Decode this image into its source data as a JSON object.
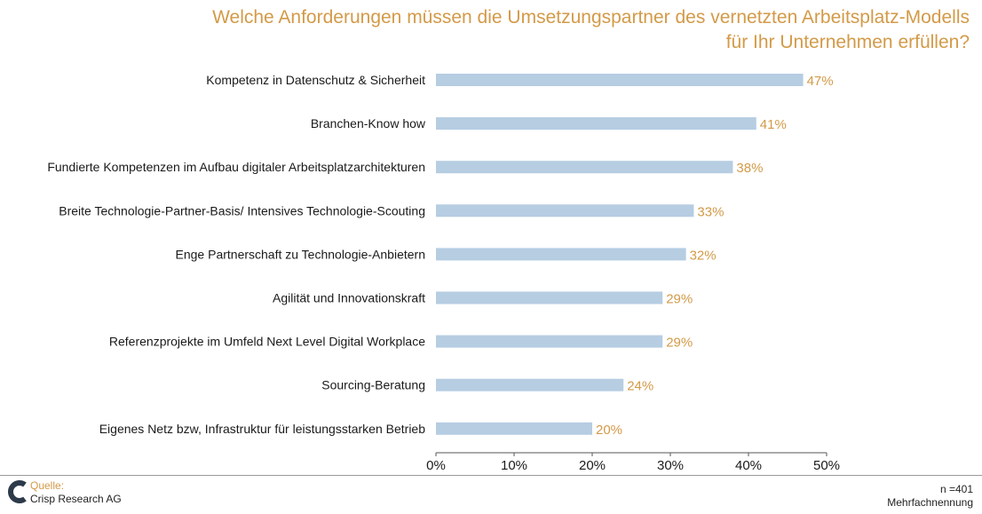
{
  "chart_data": {
    "type": "bar",
    "orientation": "horizontal",
    "title": "Welche Anforderungen müssen die Umsetzungspartner des vernetzten Arbeitsplatz-Modells für Ihr Unternehmen erfüllen?",
    "title_lines": [
      "Welche Anforderungen müssen die Umsetzungspartner des vernetzten Arbeitsplatz-Modells",
      "für Ihr Unternehmen erfüllen?"
    ],
    "categories": [
      "Kompetenz in Datenschutz & Sicherheit",
      "Branchen-Know how",
      "Fundierte Kompetenzen im Aufbau digitaler Arbeitsplatzarchitekturen",
      "Breite Technologie-Partner-Basis/ Intensives Technologie-Scouting",
      "Enge Partnerschaft zu Technologie-Anbietern",
      "Agilität und Innovationskraft",
      "Referenzprojekte im Umfeld Next Level Digital Workplace",
      "Sourcing-Beratung",
      "Eigenes Netz bzw, Infrastruktur für leistungsstarken Betrieb"
    ],
    "values": [
      47,
      41,
      38,
      33,
      32,
      29,
      29,
      24,
      20
    ],
    "value_labels": [
      "47%",
      "41%",
      "38%",
      "33%",
      "32%",
      "29%",
      "29%",
      "24%",
      "20%"
    ],
    "xlim": [
      0,
      50
    ],
    "xticks": [
      0,
      10,
      20,
      30,
      40,
      50
    ],
    "xtick_labels": [
      "0%",
      "10%",
      "20%",
      "30%",
      "40%",
      "50%"
    ],
    "xlabel": "",
    "ylabel": "",
    "grid": false,
    "bar_color": "#b6cde2",
    "label_color": "#d39a48"
  },
  "footer": {
    "source_label": "Quelle:",
    "source_name": "Crisp Research AG",
    "n": "n =401",
    "note": "Mehrfachnennung"
  }
}
